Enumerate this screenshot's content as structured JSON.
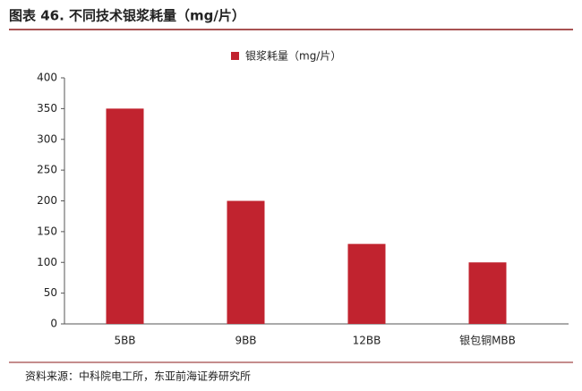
{
  "chart_data": {
    "type": "bar",
    "title": "图表 46. 不同技术银浆耗量（mg/片）",
    "legend": "银浆耗量（mg/片）",
    "categories": [
      "5BB",
      "9BB",
      "12BB",
      "银包铜MBB"
    ],
    "values": [
      350,
      200,
      130,
      100
    ],
    "color": "#c1232f",
    "ylim": [
      0,
      400
    ],
    "yticks": [
      0,
      50,
      100,
      150,
      200,
      250,
      300,
      350,
      400
    ],
    "grid": false,
    "source": "资料来源：中科院电工所，东亚前海证券研究所"
  }
}
